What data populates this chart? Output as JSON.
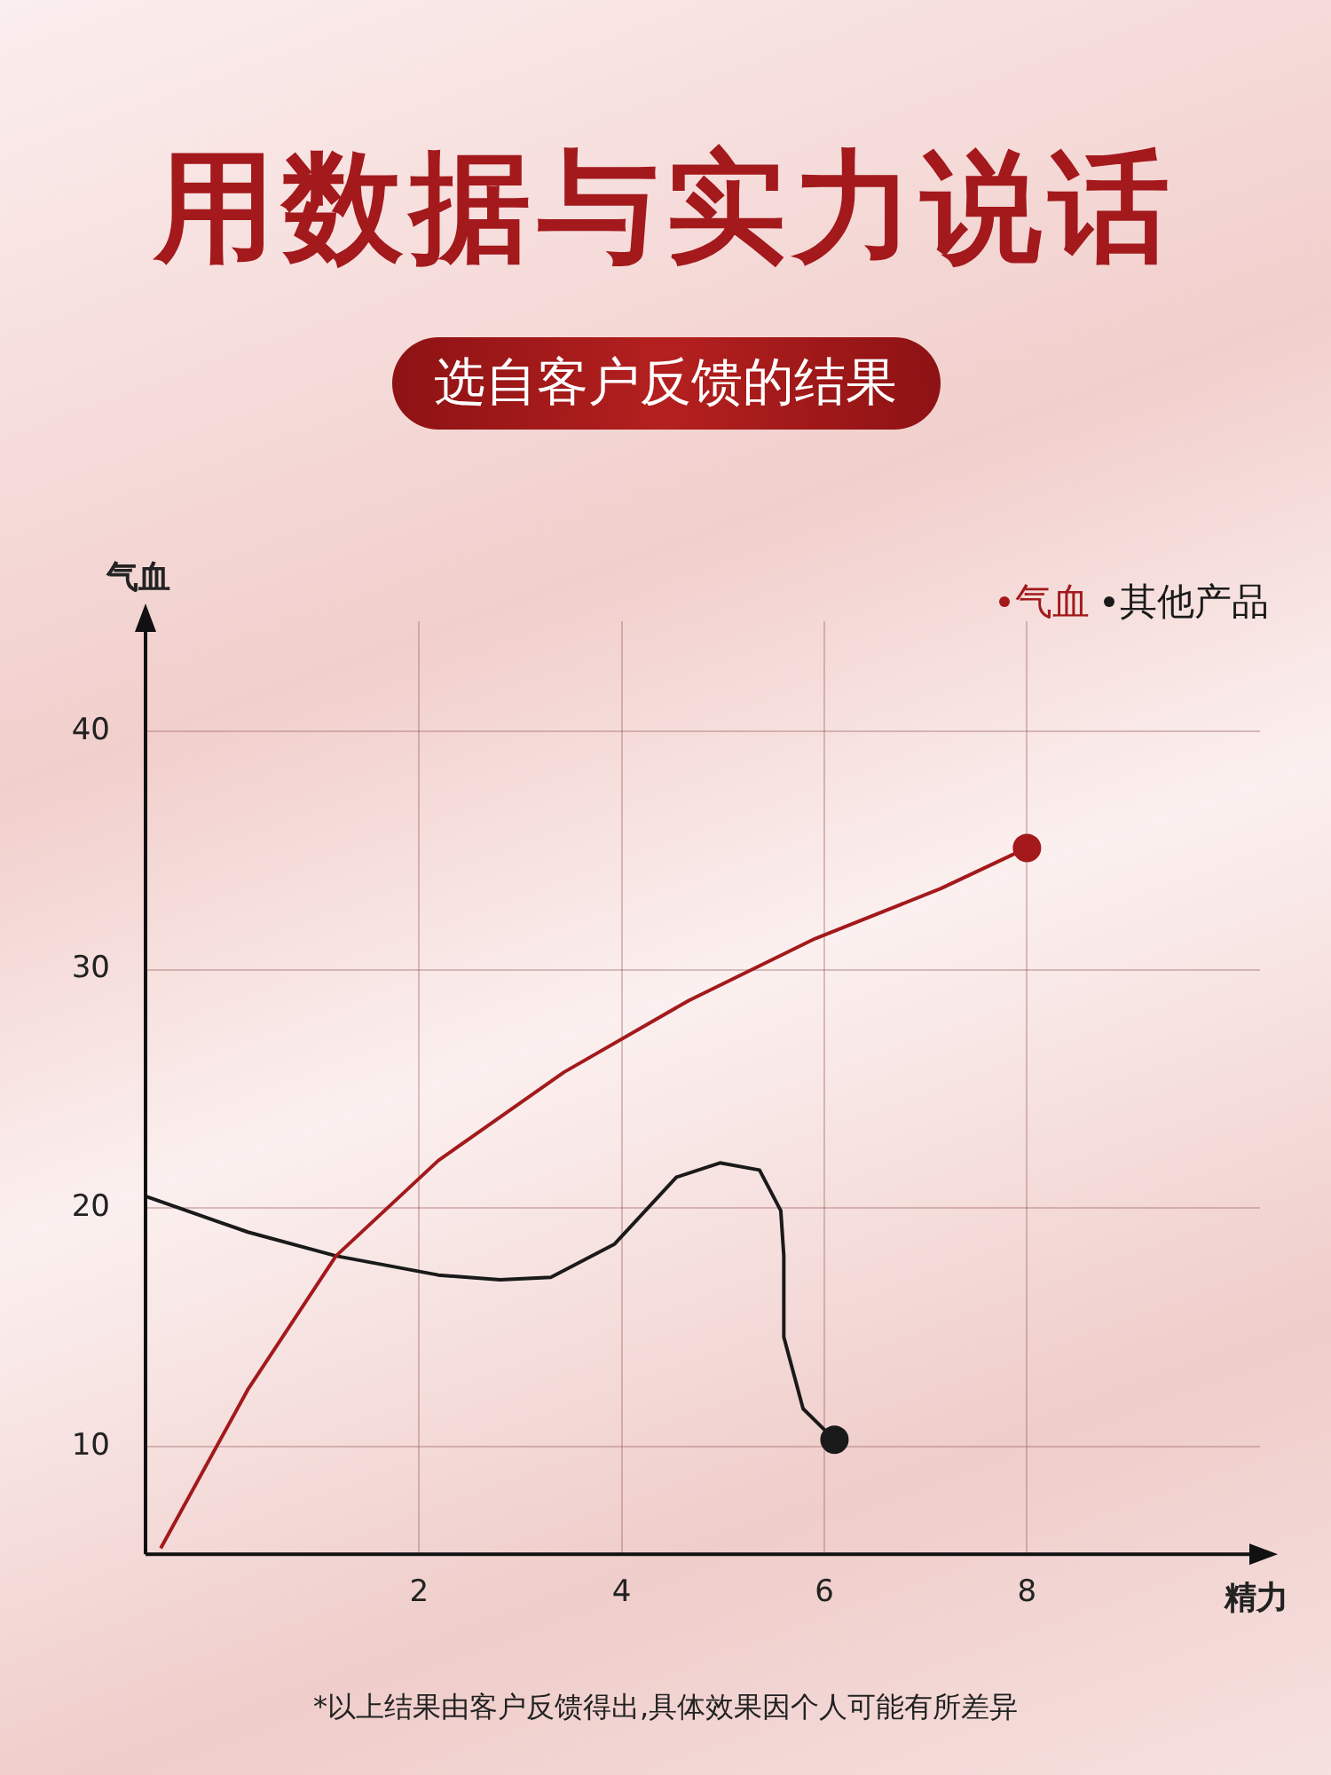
{
  "chart_data": {
    "type": "line",
    "title": "用数据与实力说话",
    "subtitle": "选自客户反馈的结果",
    "xlabel": "精力",
    "ylabel": "气血",
    "xlim": [
      -0.7,
      10.3
    ],
    "xticks": [
      2,
      4,
      6,
      8
    ],
    "ylim": [
      5.5,
      44.6
    ],
    "yticks": [
      10,
      20,
      30,
      40
    ],
    "grid": true,
    "legend": "top right",
    "line_style": "solid",
    "series": [
      {
        "name": "气血",
        "color": "#a3191c",
        "marker": "none",
        "x": [
          -0.55,
          0.31,
          1.18,
          2.19,
          3.43,
          4.66,
          5.91,
          7.15,
          8.0
        ],
        "values": [
          5.75,
          12.4,
          18.0,
          22.0,
          25.7,
          28.7,
          31.3,
          33.4,
          35.1
        ]
      },
      {
        "name": "其他产品",
        "color": "#1a1a1a",
        "marker": "none",
        "x": [
          -0.7,
          0.31,
          1.18,
          2.19,
          2.8,
          3.3,
          3.93,
          4.54,
          4.97,
          5.36,
          5.57,
          5.6,
          5.6,
          5.79,
          6.1
        ],
        "values": [
          20.5,
          19.0,
          18.0,
          17.2,
          17.0,
          17.1,
          18.5,
          21.3,
          21.9,
          21.6,
          19.9,
          18.0,
          14.6,
          11.6,
          10.3
        ]
      },
      {
        "type": "scatter",
        "color": "#a3191c",
        "marker": "circle",
        "x": [
          8.0
        ],
        "values": [
          35.1
        ]
      },
      {
        "type": "scatter",
        "color": "#1a1a1a",
        "marker": "circle",
        "x": [
          6.1
        ],
        "values": [
          10.3
        ]
      }
    ],
    "annotations": [
      "*以上结果由客户反馈得出,具体效果因个人可能有所差异"
    ]
  }
}
